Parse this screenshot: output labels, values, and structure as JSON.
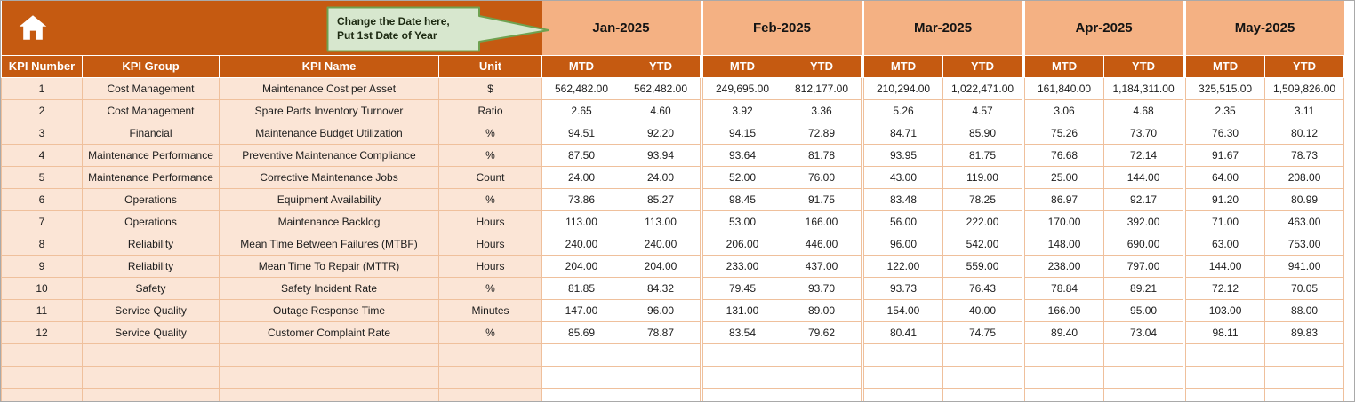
{
  "callout": {
    "line1": "Change the Date here,",
    "line2": "Put 1st Date of Year"
  },
  "months": [
    "Jan-2025",
    "Feb-2025",
    "Mar-2025",
    "Apr-2025",
    "May-2025"
  ],
  "subheaders": [
    "MTD",
    "YTD"
  ],
  "columns": [
    "KPI Number",
    "KPI Group",
    "KPI Name",
    "Unit"
  ],
  "rows": [
    {
      "num": "1",
      "group": "Cost Management",
      "name": "Maintenance Cost per Asset",
      "unit": "$",
      "values": [
        "562,482.00",
        "562,482.00",
        "249,695.00",
        "812,177.00",
        "210,294.00",
        "1,022,471.00",
        "161,840.00",
        "1,184,311.00",
        "325,515.00",
        "1,509,826.00"
      ]
    },
    {
      "num": "2",
      "group": "Cost Management",
      "name": "Spare Parts Inventory Turnover",
      "unit": "Ratio",
      "values": [
        "2.65",
        "4.60",
        "3.92",
        "3.36",
        "5.26",
        "4.57",
        "3.06",
        "4.68",
        "2.35",
        "3.11"
      ]
    },
    {
      "num": "3",
      "group": "Financial",
      "name": "Maintenance Budget Utilization",
      "unit": "%",
      "values": [
        "94.51",
        "92.20",
        "94.15",
        "72.89",
        "84.71",
        "85.90",
        "75.26",
        "73.70",
        "76.30",
        "80.12"
      ]
    },
    {
      "num": "4",
      "group": "Maintenance Performance",
      "name": "Preventive Maintenance Compliance",
      "unit": "%",
      "values": [
        "87.50",
        "93.94",
        "93.64",
        "81.78",
        "93.95",
        "81.75",
        "76.68",
        "72.14",
        "91.67",
        "78.73"
      ]
    },
    {
      "num": "5",
      "group": "Maintenance Performance",
      "name": "Corrective Maintenance Jobs",
      "unit": "Count",
      "values": [
        "24.00",
        "24.00",
        "52.00",
        "76.00",
        "43.00",
        "119.00",
        "25.00",
        "144.00",
        "64.00",
        "208.00"
      ]
    },
    {
      "num": "6",
      "group": "Operations",
      "name": "Equipment Availability",
      "unit": "%",
      "values": [
        "73.86",
        "85.27",
        "98.45",
        "91.75",
        "83.48",
        "78.25",
        "86.97",
        "92.17",
        "91.20",
        "80.99"
      ]
    },
    {
      "num": "7",
      "group": "Operations",
      "name": "Maintenance Backlog",
      "unit": "Hours",
      "values": [
        "113.00",
        "113.00",
        "53.00",
        "166.00",
        "56.00",
        "222.00",
        "170.00",
        "392.00",
        "71.00",
        "463.00"
      ]
    },
    {
      "num": "8",
      "group": "Reliability",
      "name": "Mean Time Between Failures (MTBF)",
      "unit": "Hours",
      "values": [
        "240.00",
        "240.00",
        "206.00",
        "446.00",
        "96.00",
        "542.00",
        "148.00",
        "690.00",
        "63.00",
        "753.00"
      ]
    },
    {
      "num": "9",
      "group": "Reliability",
      "name": "Mean Time To Repair (MTTR)",
      "unit": "Hours",
      "values": [
        "204.00",
        "204.00",
        "233.00",
        "437.00",
        "122.00",
        "559.00",
        "238.00",
        "797.00",
        "144.00",
        "941.00"
      ]
    },
    {
      "num": "10",
      "group": "Safety",
      "name": "Safety Incident Rate",
      "unit": "%",
      "values": [
        "81.85",
        "84.32",
        "79.45",
        "93.70",
        "93.73",
        "76.43",
        "78.84",
        "89.21",
        "72.12",
        "70.05"
      ]
    },
    {
      "num": "11",
      "group": "Service Quality",
      "name": "Outage Response Time",
      "unit": "Minutes",
      "values": [
        "147.00",
        "96.00",
        "131.00",
        "89.00",
        "154.00",
        "40.00",
        "166.00",
        "95.00",
        "103.00",
        "88.00"
      ]
    },
    {
      "num": "12",
      "group": "Service Quality",
      "name": "Customer Complaint Rate",
      "unit": "%",
      "values": [
        "85.69",
        "78.87",
        "83.54",
        "79.62",
        "80.41",
        "74.75",
        "89.40",
        "73.04",
        "98.11",
        "89.83"
      ]
    }
  ],
  "empty_row_count": 3,
  "colors": {
    "rust": "#C55A11",
    "band_light": "#F4B183",
    "peach": "#FBE5D6",
    "grid": "#EFC09C",
    "header_text": "#FFFFFF",
    "callout_fill": "#D7E7CE",
    "callout_border": "#6FA150"
  }
}
